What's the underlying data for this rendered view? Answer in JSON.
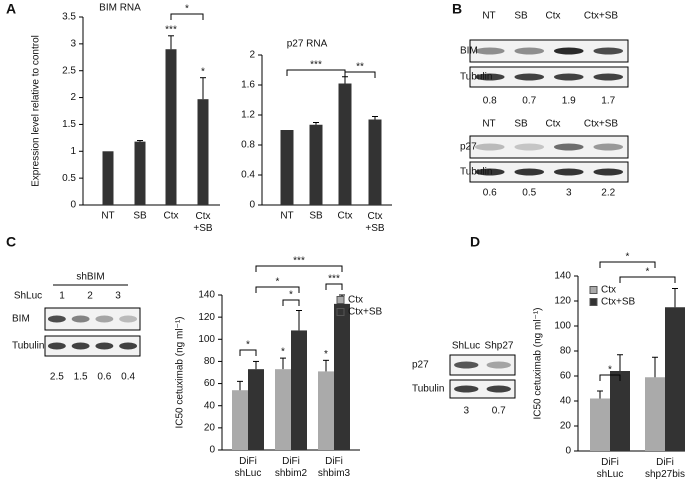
{
  "panels": [
    "A",
    "B",
    "C",
    "D"
  ],
  "chart_data": [
    {
      "type": "bar",
      "title": "BIM RNA",
      "ylabel": "Expression level relative to control",
      "categories": [
        "NT",
        "SB",
        "Ctx",
        "Ctx\n+SB"
      ],
      "values": [
        1,
        1.18,
        2.9,
        1.97
      ],
      "errors": [
        0,
        0.02,
        0.25,
        0.4
      ],
      "color": "#333333",
      "ylim": [
        0,
        3.5
      ],
      "yticks": [
        0,
        0.5,
        1,
        1.5,
        2,
        2.5,
        3,
        3.5
      ],
      "stars": [
        {
          "text": "***",
          "category": 2
        },
        {
          "text": "*",
          "category": 3
        }
      ],
      "brackets": [
        {
          "text": "*",
          "from": 2,
          "to": 3
        }
      ]
    },
    {
      "type": "bar",
      "title": "p27 RNA",
      "categories": [
        "NT",
        "SB",
        "Ctx",
        "Ctx\n+SB"
      ],
      "values": [
        1,
        1.07,
        1.62,
        1.14
      ],
      "errors": [
        0,
        0.03,
        0.09,
        0.04
      ],
      "color": "#333333",
      "ylim": [
        0,
        2
      ],
      "yticks": [
        0,
        0.4,
        0.8,
        1.2,
        1.6,
        2
      ],
      "brackets": [
        {
          "text": "***",
          "from": 0,
          "to": 2
        },
        {
          "text": "**",
          "from": 2,
          "to": 3
        }
      ]
    },
    {
      "type": "grouped-bar",
      "ylabel": "IC50 cetuximab (ng ml⁻¹)",
      "categories": [
        "DiFi\nshLuc",
        "DiFi\nshbim2",
        "DiFi\nshbim3"
      ],
      "series": [
        {
          "name": "Ctx",
          "color": "#aaaaaa",
          "values": [
            54,
            73,
            71
          ],
          "errors": [
            8,
            10,
            10
          ]
        },
        {
          "name": "Ctx+SB",
          "color": "#333333",
          "values": [
            73,
            108,
            132
          ],
          "errors": [
            7,
            18,
            8
          ]
        }
      ],
      "ylim": [
        0,
        140
      ],
      "yticks": [
        0,
        20,
        40,
        60,
        80,
        100,
        120,
        140
      ],
      "stars": [
        {
          "text": "*",
          "category": 1,
          "series": 0
        },
        {
          "text": "*",
          "category": 2,
          "series": 0
        }
      ],
      "brackets": [
        {
          "text": "*",
          "from": [
            0,
            0
          ],
          "to": [
            0,
            1
          ]
        },
        {
          "text": "*",
          "from": [
            1,
            0
          ],
          "to": [
            1,
            1
          ]
        },
        {
          "text": "***",
          "from": [
            2,
            0
          ],
          "to": [
            2,
            1
          ]
        },
        {
          "text": "*",
          "from": [
            0,
            1
          ],
          "to": [
            1,
            1
          ]
        },
        {
          "text": "***",
          "from": [
            0,
            1
          ],
          "to": [
            2,
            1
          ]
        }
      ]
    },
    {
      "type": "grouped-bar",
      "ylabel": "IC50 cetuximab (ng ml⁻¹)",
      "categories": [
        "DiFi\nshLuc",
        "DiFi\nshp27bis"
      ],
      "series": [
        {
          "name": "Ctx",
          "color": "#aaaaaa",
          "values": [
            42,
            59
          ],
          "errors": [
            6,
            16
          ]
        },
        {
          "name": "Ctx+SB",
          "color": "#333333",
          "values": [
            64,
            115
          ],
          "errors": [
            13,
            15
          ]
        }
      ],
      "ylim": [
        0,
        140
      ],
      "yticks": [
        0,
        20,
        40,
        60,
        80,
        100,
        120,
        140
      ],
      "brackets": [
        {
          "text": "*",
          "from": [
            0,
            0
          ],
          "to": [
            0,
            1
          ]
        },
        {
          "text": "*",
          "from": [
            0,
            0
          ],
          "to": [
            1,
            0
          ]
        },
        {
          "text": "*",
          "from": [
            0,
            1
          ],
          "to": [
            1,
            1
          ]
        }
      ]
    }
  ],
  "blots": [
    {
      "lanes": [
        "NT",
        "SB",
        "Ctx",
        "Ctx+SB"
      ],
      "rows": [
        "BIM",
        "Tubulin"
      ],
      "quant": [
        0.8,
        0.7,
        1.9,
        1.7
      ]
    },
    {
      "lanes": [
        "NT",
        "SB",
        "Ctx",
        "Ctx+SB"
      ],
      "rows": [
        "p27",
        "Tubulin"
      ],
      "quant": [
        0.6,
        0.5,
        3,
        2.2
      ]
    },
    {
      "group": "shBIM",
      "lanes": [
        "ShLuc",
        "1",
        "2",
        "3"
      ],
      "rows": [
        "BIM",
        "Tubulin"
      ],
      "quant": [
        2.5,
        1.5,
        0.6,
        0.4
      ]
    },
    {
      "lanes": [
        "ShLuc",
        "Shp27"
      ],
      "rows": [
        "p27",
        "Tubulin"
      ],
      "quant": [
        3,
        0.7
      ]
    }
  ]
}
